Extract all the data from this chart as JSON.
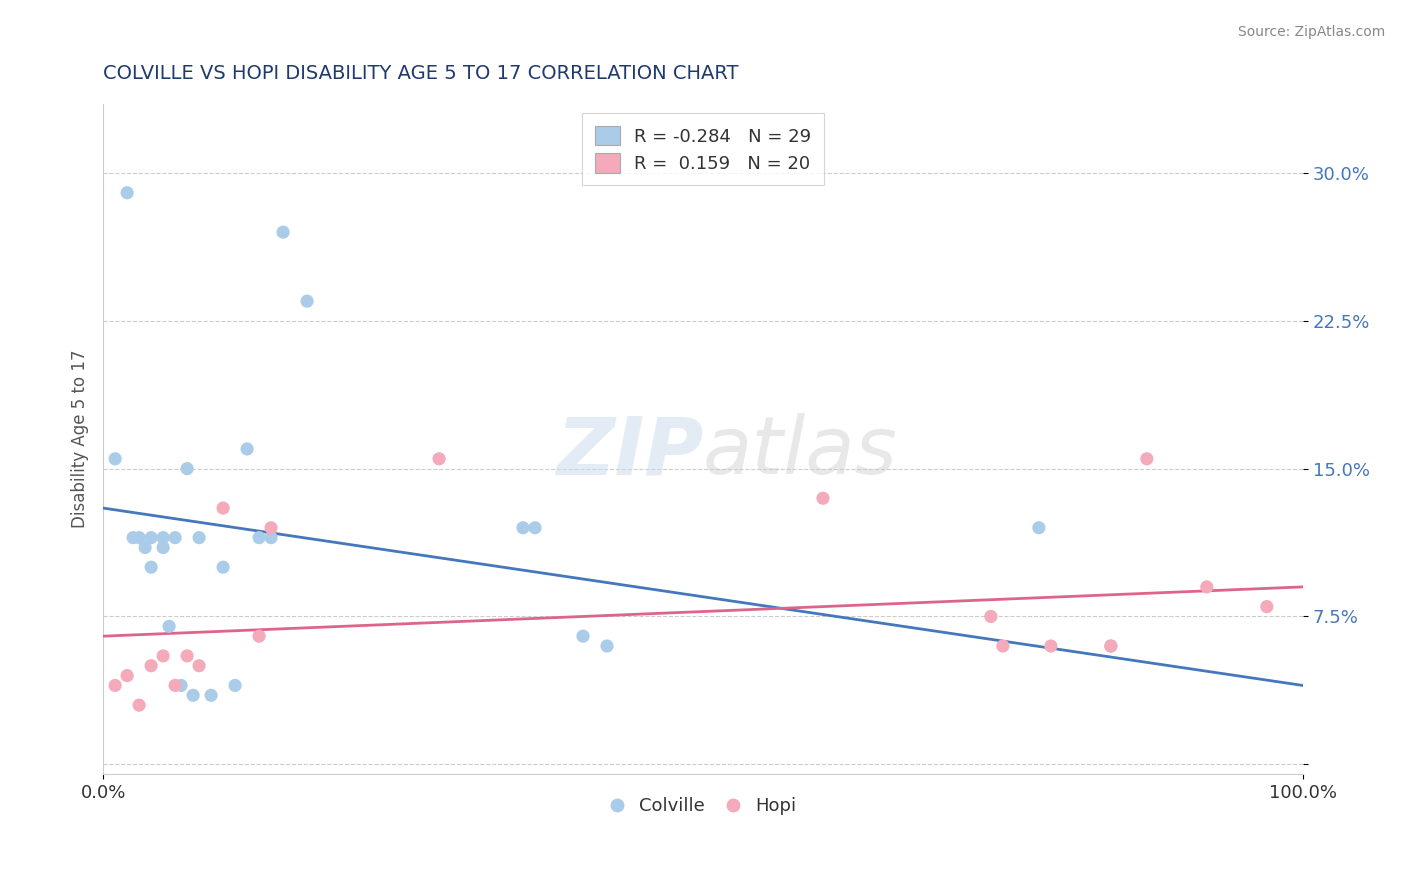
{
  "title": "COLVILLE VS HOPI DISABILITY AGE 5 TO 17 CORRELATION CHART",
  "source": "Source: ZipAtlas.com",
  "ylabel": "Disability Age 5 to 17",
  "xlim": [
    0.0,
    1.0
  ],
  "ylim": [
    -0.005,
    0.335
  ],
  "yticks": [
    0.0,
    0.075,
    0.15,
    0.225,
    0.3
  ],
  "ytick_labels": [
    "",
    "7.5%",
    "15.0%",
    "22.5%",
    "30.0%"
  ],
  "xtick_labels": [
    "0.0%",
    "100.0%"
  ],
  "title_color": "#1F3A6E",
  "source_color": "#888888",
  "colville_color": "#AACCE8",
  "hopi_color": "#F4AABB",
  "colville_line_color": "#4477BB",
  "hopi_line_color": "#DD6688",
  "watermark_color": "#DDDDDD",
  "legend_r_colville": "-0.284",
  "legend_n_colville": "29",
  "legend_r_hopi": "0.159",
  "legend_n_hopi": "20",
  "colville_x": [
    0.01,
    0.02,
    0.025,
    0.03,
    0.035,
    0.04,
    0.04,
    0.05,
    0.05,
    0.055,
    0.06,
    0.065,
    0.07,
    0.075,
    0.08,
    0.09,
    0.1,
    0.11,
    0.12,
    0.13,
    0.14,
    0.15,
    0.17,
    0.35,
    0.36,
    0.4,
    0.42,
    0.78,
    0.84
  ],
  "colville_y": [
    0.155,
    0.29,
    0.115,
    0.115,
    0.11,
    0.115,
    0.1,
    0.115,
    0.11,
    0.07,
    0.115,
    0.04,
    0.15,
    0.035,
    0.115,
    0.035,
    0.1,
    0.04,
    0.16,
    0.115,
    0.115,
    0.27,
    0.235,
    0.12,
    0.12,
    0.065,
    0.06,
    0.12,
    0.06
  ],
  "hopi_x": [
    0.01,
    0.02,
    0.03,
    0.04,
    0.05,
    0.06,
    0.07,
    0.08,
    0.1,
    0.13,
    0.14,
    0.28,
    0.6,
    0.74,
    0.75,
    0.79,
    0.84,
    0.87,
    0.92,
    0.97
  ],
  "hopi_y": [
    0.04,
    0.045,
    0.03,
    0.05,
    0.055,
    0.04,
    0.055,
    0.05,
    0.13,
    0.065,
    0.12,
    0.155,
    0.135,
    0.075,
    0.06,
    0.06,
    0.06,
    0.155,
    0.09,
    0.08
  ],
  "colville_trend": [
    0.13,
    0.04
  ],
  "hopi_trend": [
    0.065,
    0.09
  ]
}
